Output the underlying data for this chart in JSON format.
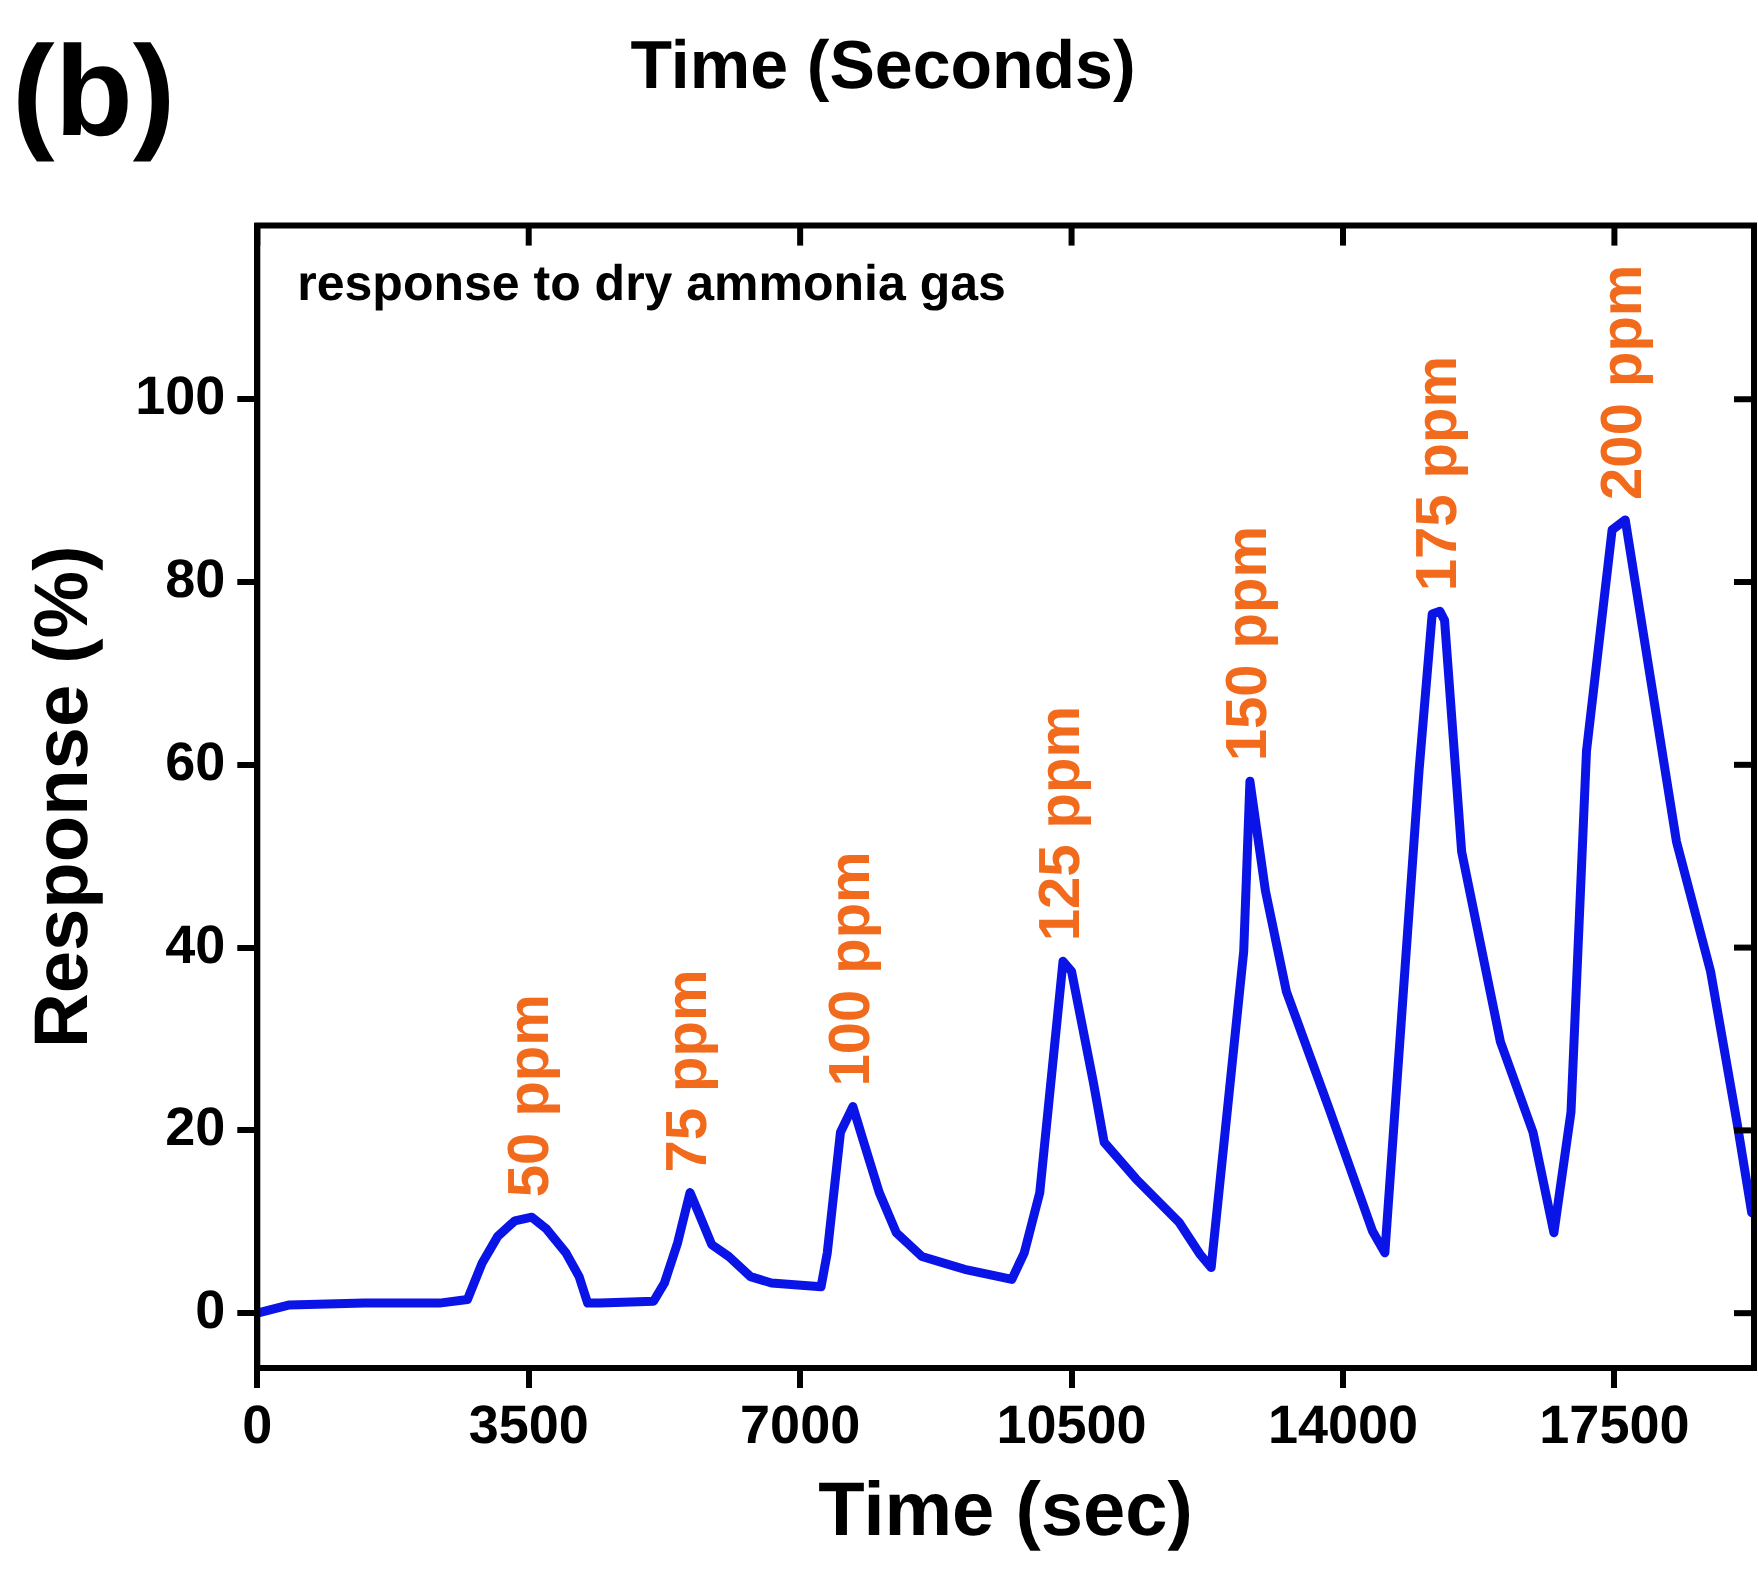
{
  "chart_data": {
    "type": "line",
    "title": "Time (Seconds)",
    "xlabel": "Time (sec)",
    "ylabel": "Response (%)",
    "annotations": [
      "(b)",
      "response to dry ammonia gas",
      {
        "text": "50 ppm",
        "x": 3540,
        "y": 10.5
      },
      {
        "text": "75 ppm",
        "x": 5580,
        "y": 13.2
      },
      {
        "text": "100 ppm",
        "x": 7680,
        "y": 22.6
      },
      {
        "text": "125 ppm",
        "x": 10390,
        "y": 38.5
      },
      {
        "text": "150 ppm",
        "x": 12800,
        "y": 58.2
      },
      {
        "text": "175 ppm",
        "x": 15250,
        "y": 76.8
      },
      {
        "text": "200 ppm",
        "x": 17640,
        "y": 86.8
      }
    ],
    "x": [
      0,
      415,
      1380,
      2350,
      2710,
      2900,
      3100,
      3320,
      3540,
      3730,
      3980,
      4150,
      4260,
      4420,
      5110,
      5250,
      5420,
      5580,
      5690,
      5860,
      6080,
      6360,
      6630,
      7270,
      7350,
      7520,
      7680,
      7820,
      8020,
      8240,
      8570,
      9120,
      9730,
      9890,
      10090,
      10390,
      10500,
      10780,
      10920,
      11330,
      11890,
      12160,
      12300,
      12720,
      12800,
      13000,
      13270,
      13820,
      14380,
      14540,
      14980,
      15150,
      15250,
      15310,
      15530,
      16030,
      16450,
      16720,
      16940,
      17140,
      17470,
      17640,
      17970,
      18300,
      18740,
      19080,
      19270
    ],
    "series": [
      {
        "color": "#0a14e6",
        "values": [
          0,
          0.9,
          1.1,
          1.1,
          1.5,
          5.5,
          8.4,
          10.1,
          10.5,
          9.2,
          6.6,
          4,
          1.1,
          1.1,
          1.3,
          3.3,
          7.7,
          13.2,
          11,
          7.5,
          6.2,
          4,
          3.3,
          2.9,
          6.6,
          19.8,
          22.6,
          18.7,
          13.2,
          8.8,
          6.2,
          4.8,
          3.7,
          6.6,
          13.2,
          38.5,
          37.4,
          25.3,
          18.7,
          14.7,
          9.9,
          6.4,
          5,
          39.6,
          58.2,
          46.2,
          35.2,
          22.4,
          9,
          6.6,
          59.3,
          76.5,
          76.8,
          75.8,
          50.5,
          29.7,
          19.8,
          8.8,
          22,
          61.5,
          85.7,
          86.8,
          69.2,
          51.6,
          37.4,
          20.9,
          11
        ]
      }
    ],
    "xlim": [
      0,
      19300
    ],
    "ylim": [
      -6,
      119
    ],
    "xticks": [
      0,
      3500,
      7000,
      10500,
      14000,
      17500
    ],
    "yticks": [
      0,
      20,
      40,
      60,
      80,
      100
    ],
    "grid": false,
    "legend": false,
    "marker": "none",
    "line_style": "solid"
  }
}
